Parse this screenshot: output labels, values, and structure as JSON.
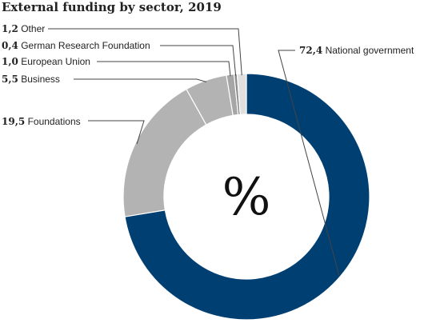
{
  "chart_data": {
    "type": "pie",
    "title": "External funding by sector, 2019",
    "center_label": "%",
    "slices": [
      {
        "label": "National government",
        "value": 72.4,
        "value_text": "72,4",
        "color": "#003f72"
      },
      {
        "label": "Foundations",
        "value": 19.5,
        "value_text": "19,5",
        "color": "#b3b3b3"
      },
      {
        "label": "Business",
        "value": 5.5,
        "value_text": "5,5",
        "color": "#b3b3b3"
      },
      {
        "label": "European Union",
        "value": 1.0,
        "value_text": "1,0",
        "color": "#a6a6a6"
      },
      {
        "label": "German Research Foundation",
        "value": 0.4,
        "value_text": "0,4",
        "color": "#8c8c8c"
      },
      {
        "label": "Other",
        "value": 1.2,
        "value_text": "1,2",
        "color": "#e0e0e0"
      }
    ]
  }
}
